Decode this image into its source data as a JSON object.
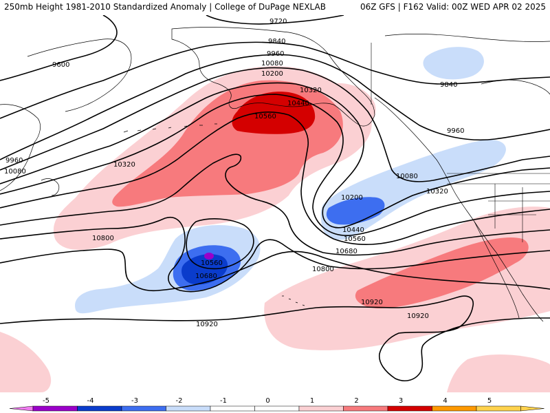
{
  "header": {
    "title_left": "250mb Height 1981-2010 Standardized Anomaly | College of DuPage NEXLAB",
    "title_right": "06Z GFS | F162 Valid: 00Z WED APR 02 2025"
  },
  "colors": {
    "neg5": "#ef7bef",
    "neg4": "#9a00c9",
    "neg3": "#0a3ccc",
    "neg2": "#3d6ef0",
    "neg1": "#c9ddfa",
    "zero": "#ffffff",
    "pos1": "#fbd0d3",
    "pos2": "#f77a7d",
    "pos3": "#d40000",
    "pos4": "#ff9900",
    "pos5": "#ffd24d"
  },
  "colorbar": {
    "labels": [
      "-5",
      "-4",
      "-3",
      "-2",
      "-1",
      "0",
      "1",
      "2",
      "3",
      "4",
      "5"
    ]
  },
  "contour_labels": {
    "c9720": "9720",
    "c9600": "9600",
    "c9840a": "9840",
    "c9840b": "9840",
    "c9960a": "9960",
    "c9960b": "9960",
    "c9960c": "9960",
    "c10080a": "10080",
    "c10080b": "10080",
    "c10080c": "10080",
    "c10200a": "10200",
    "c10200b": "10200",
    "c10320a": "10320",
    "c10320b": "10320",
    "c10320c": "10320",
    "c10440a": "10440",
    "c10440b": "10440",
    "c10560a": "10560",
    "c10560b": "10560",
    "c10560c": "10560",
    "c10680a": "10680",
    "c10680b": "10680",
    "c10800a": "10800",
    "c10800b": "10800",
    "c10920a": "10920",
    "c10920b": "10920",
    "c10920c": "10920"
  }
}
